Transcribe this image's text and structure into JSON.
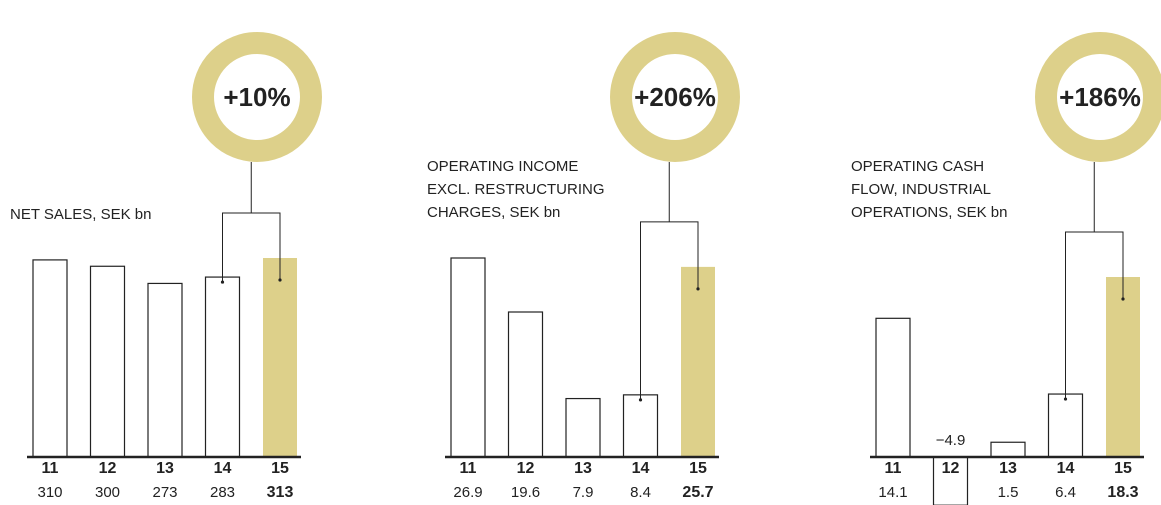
{
  "chart_data": [
    {
      "type": "bar",
      "title": [
        "NET SALES, SEK bn"
      ],
      "annotation": "+10%",
      "categories": [
        "11",
        "12",
        "13",
        "14",
        "15"
      ],
      "values": [
        310,
        300,
        273,
        283,
        313
      ],
      "color": "#ddd08a"
    },
    {
      "type": "bar",
      "title": [
        "OPERATING INCOME",
        "EXCL. RESTRUCTURING",
        "CHARGES, SEK bn"
      ],
      "annotation": "+206%",
      "categories": [
        "11",
        "12",
        "13",
        "14",
        "15"
      ],
      "values": [
        26.9,
        19.6,
        7.9,
        8.4,
        25.7
      ],
      "color": "#ddd08a"
    },
    {
      "type": "bar",
      "title": [
        "OPERATING CASH",
        "FLOW, INDUSTRIAL",
        "OPERATIONS, SEK bn"
      ],
      "annotation": "+186%",
      "categories": [
        "11",
        "12",
        "13",
        "14",
        "15"
      ],
      "values": [
        14.1,
        -4.9,
        1.5,
        6.4,
        18.3
      ],
      "value_labels": [
        "14.1",
        "−4.9",
        "1.5",
        "6.4",
        "18.3"
      ],
      "color": "#ddd08a"
    }
  ]
}
